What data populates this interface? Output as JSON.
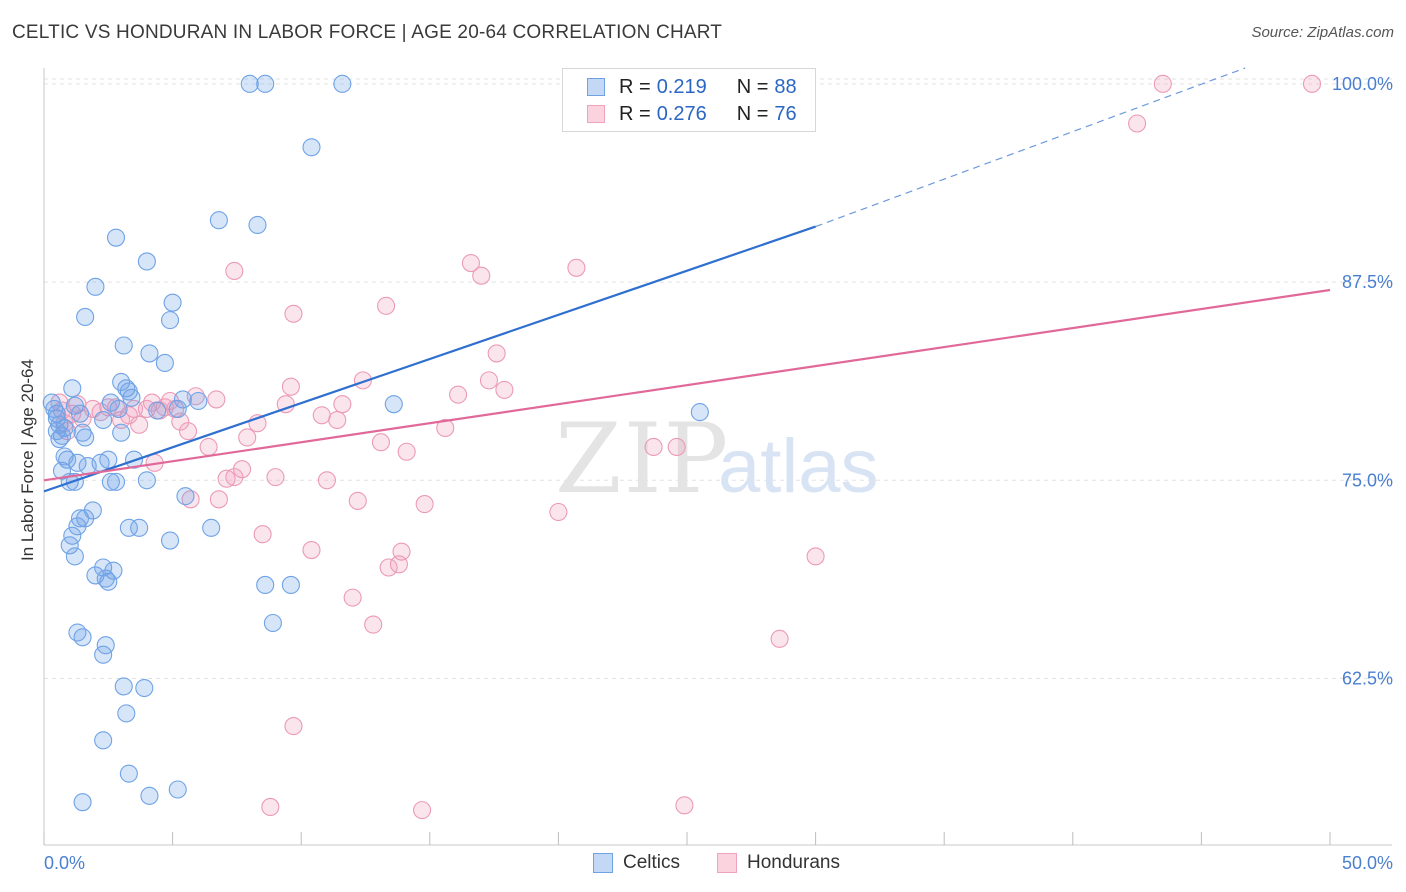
{
  "title": "CELTIC VS HONDURAN IN LABOR FORCE | AGE 20-64 CORRELATION CHART",
  "source": "Source: ZipAtlas.com",
  "watermark": {
    "zip": "ZIP",
    "atlas": "atlas"
  },
  "colors": {
    "celtic": "#6fa3e6",
    "celtic_line": "#2f6fcf",
    "honduran": "#f0a3bd",
    "honduran_line": "#e0699a",
    "axis_text": "#4a7fd0"
  },
  "legend": {
    "r_label": "R =",
    "n_label": "N =",
    "celtic": {
      "r": "0.219",
      "n": "88"
    },
    "honduran": {
      "r": "0.276",
      "n": "76"
    }
  },
  "chart_data": {
    "type": "scatter",
    "title": "CELTIC VS HONDURAN IN LABOR FORCE | AGE 20-64 CORRELATION CHART",
    "xlabel": "",
    "ylabel": "In Labor Force | Age 20-64",
    "xlim": [
      0,
      50
    ],
    "ylim": [
      52,
      101
    ],
    "x_tick_labels": [
      "0.0%",
      "50.0%"
    ],
    "y_ticks": [
      62.5,
      75.0,
      87.5,
      100.0
    ],
    "y_tick_labels": [
      "62.5%",
      "75.0%",
      "87.5%",
      "100.0%"
    ],
    "grid": true,
    "legend_position": "top-center",
    "series": [
      {
        "name": "Celtics",
        "r": 0.219,
        "n": 88,
        "trend": {
          "x": [
            0,
            30
          ],
          "y": [
            74.3,
            91.0
          ],
          "dashed_to": [
            46.7,
            101.0
          ]
        },
        "points": [
          [
            0.3,
            79.9
          ],
          [
            0.4,
            79.5
          ],
          [
            0.5,
            79.2
          ],
          [
            0.5,
            78.9
          ],
          [
            0.6,
            78.5
          ],
          [
            0.5,
            78.1
          ],
          [
            0.8,
            78.3
          ],
          [
            0.7,
            77.8
          ],
          [
            0.6,
            77.6
          ],
          [
            0.8,
            76.5
          ],
          [
            0.9,
            76.3
          ],
          [
            0.7,
            75.6
          ],
          [
            1.0,
            74.9
          ],
          [
            1.1,
            80.8
          ],
          [
            1.2,
            79.7
          ],
          [
            1.4,
            79.2
          ],
          [
            1.5,
            78.0
          ],
          [
            1.6,
            77.7
          ],
          [
            1.3,
            76.1
          ],
          [
            1.2,
            74.9
          ],
          [
            1.4,
            72.6
          ],
          [
            1.3,
            72.1
          ],
          [
            1.1,
            71.5
          ],
          [
            1.0,
            70.9
          ],
          [
            1.2,
            70.2
          ],
          [
            1.7,
            75.9
          ],
          [
            1.9,
            73.1
          ],
          [
            1.6,
            72.6
          ],
          [
            2.0,
            69.0
          ],
          [
            2.3,
            69.5
          ],
          [
            2.4,
            68.8
          ],
          [
            2.5,
            68.6
          ],
          [
            2.7,
            69.3
          ],
          [
            2.2,
            76.1
          ],
          [
            2.5,
            76.3
          ],
          [
            2.6,
            74.9
          ],
          [
            2.8,
            74.9
          ],
          [
            2.3,
            78.8
          ],
          [
            2.6,
            79.9
          ],
          [
            2.9,
            79.5
          ],
          [
            3.0,
            81.2
          ],
          [
            3.2,
            80.8
          ],
          [
            3.3,
            80.6
          ],
          [
            3.4,
            80.2
          ],
          [
            3.0,
            78.0
          ],
          [
            3.5,
            76.3
          ],
          [
            2.0,
            87.2
          ],
          [
            1.6,
            85.3
          ],
          [
            3.1,
            83.5
          ],
          [
            2.8,
            90.3
          ],
          [
            4.0,
            88.8
          ],
          [
            4.1,
            83.0
          ],
          [
            4.7,
            82.4
          ],
          [
            5.0,
            86.2
          ],
          [
            4.9,
            85.1
          ],
          [
            5.4,
            80.1
          ],
          [
            4.4,
            79.4
          ],
          [
            5.2,
            79.5
          ],
          [
            4.0,
            75.0
          ],
          [
            5.5,
            74.0
          ],
          [
            3.3,
            72.0
          ],
          [
            3.7,
            72.0
          ],
          [
            4.9,
            71.2
          ],
          [
            6.5,
            72.0
          ],
          [
            1.3,
            65.4
          ],
          [
            1.5,
            65.1
          ],
          [
            2.4,
            64.6
          ],
          [
            2.3,
            64.0
          ],
          [
            3.1,
            62.0
          ],
          [
            3.9,
            61.9
          ],
          [
            3.2,
            60.3
          ],
          [
            2.3,
            58.6
          ],
          [
            3.3,
            56.5
          ],
          [
            1.5,
            54.7
          ],
          [
            4.1,
            55.1
          ],
          [
            5.2,
            55.5
          ],
          [
            6.8,
            91.4
          ],
          [
            8.3,
            91.1
          ],
          [
            8.0,
            100.0
          ],
          [
            8.6,
            100.0
          ],
          [
            10.4,
            96.0
          ],
          [
            11.6,
            100.0
          ],
          [
            8.6,
            68.4
          ],
          [
            9.6,
            68.4
          ],
          [
            8.9,
            66.0
          ],
          [
            6.0,
            80.0
          ],
          [
            13.6,
            79.8
          ],
          [
            25.5,
            79.3
          ]
        ]
      },
      {
        "name": "Hondurans",
        "r": 0.276,
        "n": 76,
        "trend": {
          "x": [
            0,
            50
          ],
          "y": [
            75.0,
            87.0
          ]
        },
        "points": [
          [
            0.6,
            79.9
          ],
          [
            0.7,
            79.4
          ],
          [
            0.8,
            78.6
          ],
          [
            0.9,
            78.1
          ],
          [
            1.1,
            79.2
          ],
          [
            1.3,
            79.8
          ],
          [
            1.5,
            78.9
          ],
          [
            1.9,
            79.5
          ],
          [
            2.2,
            79.3
          ],
          [
            2.5,
            79.6
          ],
          [
            2.8,
            79.6
          ],
          [
            3.0,
            78.8
          ],
          [
            3.3,
            79.1
          ],
          [
            3.5,
            79.5
          ],
          [
            3.7,
            78.5
          ],
          [
            4.0,
            79.5
          ],
          [
            4.2,
            79.9
          ],
          [
            4.5,
            79.4
          ],
          [
            4.7,
            79.6
          ],
          [
            4.9,
            80.0
          ],
          [
            5.1,
            79.5
          ],
          [
            5.3,
            78.7
          ],
          [
            5.6,
            78.1
          ],
          [
            5.9,
            80.3
          ],
          [
            6.4,
            77.1
          ],
          [
            6.7,
            80.1
          ],
          [
            4.3,
            76.1
          ],
          [
            5.7,
            73.8
          ],
          [
            7.1,
            75.1
          ],
          [
            7.4,
            75.2
          ],
          [
            7.7,
            75.7
          ],
          [
            7.9,
            77.7
          ],
          [
            8.3,
            78.6
          ],
          [
            8.5,
            71.6
          ],
          [
            9.0,
            75.2
          ],
          [
            9.4,
            79.8
          ],
          [
            9.6,
            80.9
          ],
          [
            9.7,
            85.5
          ],
          [
            10.4,
            70.6
          ],
          [
            10.8,
            79.1
          ],
          [
            11.0,
            75.0
          ],
          [
            11.4,
            78.8
          ],
          [
            11.6,
            79.8
          ],
          [
            12.0,
            67.6
          ],
          [
            12.2,
            73.7
          ],
          [
            12.4,
            81.3
          ],
          [
            12.8,
            65.9
          ],
          [
            13.1,
            77.4
          ],
          [
            13.3,
            86.0
          ],
          [
            13.4,
            69.5
          ],
          [
            13.8,
            69.7
          ],
          [
            13.9,
            70.5
          ],
          [
            14.1,
            76.8
          ],
          [
            14.8,
            73.5
          ],
          [
            15.6,
            78.3
          ],
          [
            16.1,
            80.4
          ],
          [
            16.6,
            88.7
          ],
          [
            17.0,
            87.9
          ],
          [
            17.3,
            81.3
          ],
          [
            17.6,
            83.0
          ],
          [
            17.9,
            80.7
          ],
          [
            7.4,
            88.2
          ],
          [
            6.8,
            73.8
          ],
          [
            9.7,
            59.5
          ],
          [
            8.8,
            54.4
          ],
          [
            14.7,
            54.2
          ],
          [
            20.0,
            73.0
          ],
          [
            20.7,
            88.4
          ],
          [
            23.7,
            77.1
          ],
          [
            24.6,
            77.1
          ],
          [
            24.9,
            54.5
          ],
          [
            28.6,
            65.0
          ],
          [
            30.0,
            70.2
          ],
          [
            42.5,
            97.5
          ],
          [
            43.5,
            100.0
          ],
          [
            49.3,
            100.0
          ]
        ]
      }
    ]
  }
}
